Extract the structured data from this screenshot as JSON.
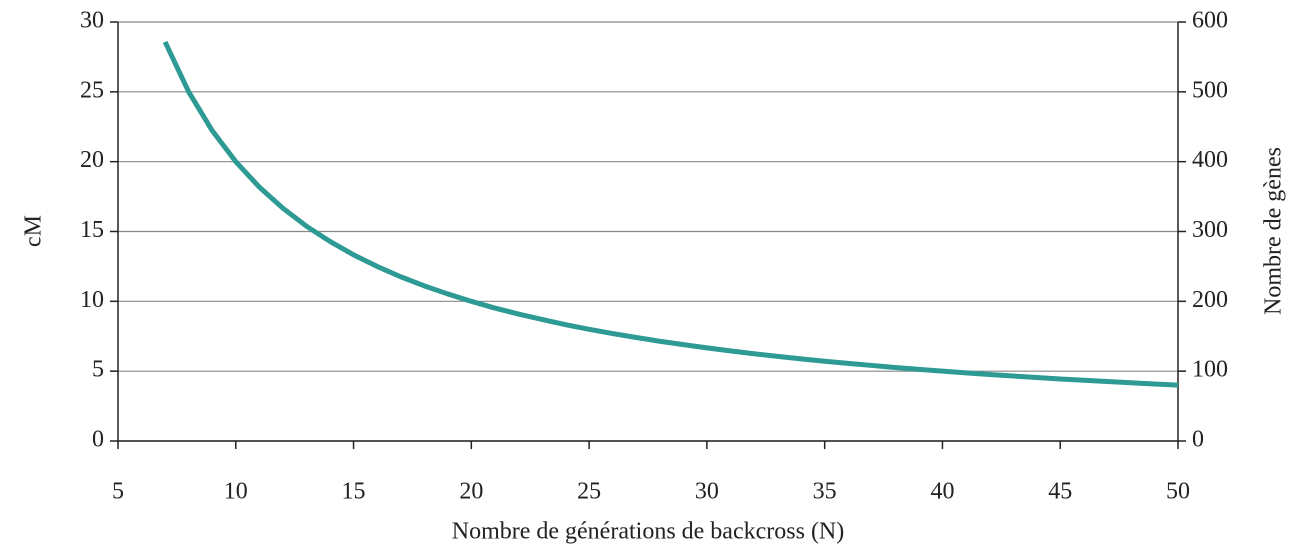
{
  "chart_data": {
    "type": "line",
    "xlabel": "Nombre de générations de backcross (N)",
    "ylabel": "cM",
    "y2label": "Nombre de gènes",
    "x": [
      7,
      8,
      9,
      10,
      11,
      12,
      13,
      14,
      15,
      16,
      17,
      18,
      19,
      20,
      21,
      22,
      23,
      24,
      25,
      26,
      27,
      28,
      29,
      30,
      31,
      32,
      33,
      34,
      35,
      36,
      37,
      38,
      39,
      40,
      41,
      42,
      43,
      44,
      45,
      46,
      47,
      48,
      49,
      50
    ],
    "series": [
      {
        "name": "cM",
        "color": "#2e9a94",
        "values": [
          28.57,
          25,
          22.22,
          20,
          18.18,
          16.67,
          15.38,
          14.29,
          13.33,
          12.5,
          11.76,
          11.11,
          10.53,
          10,
          9.52,
          9.09,
          8.7,
          8.33,
          8,
          7.69,
          7.41,
          7.14,
          6.9,
          6.67,
          6.45,
          6.25,
          6.06,
          5.88,
          5.71,
          5.56,
          5.41,
          5.26,
          5.13,
          5,
          4.88,
          4.76,
          4.65,
          4.55,
          4.44,
          4.35,
          4.26,
          4.17,
          4.08,
          4
        ]
      }
    ],
    "xlim": [
      5,
      50
    ],
    "xticks": [
      5,
      10,
      15,
      20,
      25,
      30,
      35,
      40,
      45,
      50
    ],
    "ylim": [
      0,
      30
    ],
    "yticks": [
      0,
      5,
      10,
      15,
      20,
      25,
      30
    ],
    "y2lim": [
      0,
      600
    ],
    "y2ticks": [
      0,
      100,
      200,
      300,
      400,
      500,
      600
    ],
    "grid": true
  }
}
